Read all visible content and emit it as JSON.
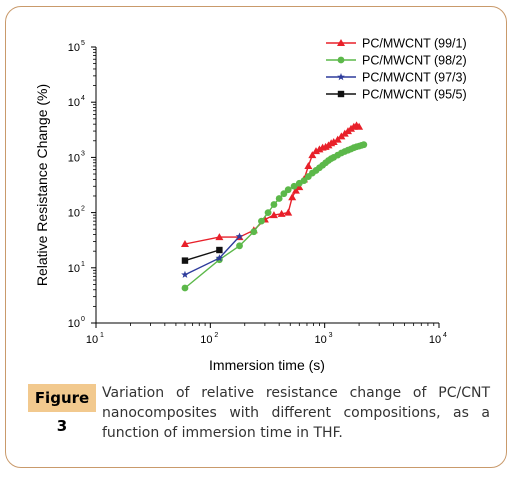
{
  "chart_data": {
    "type": "scatter",
    "title": "",
    "xlabel": "Immersion time (s)",
    "ylabel": "Relative Resistance Change (%)",
    "xscale": "log",
    "yscale": "log",
    "xlim": [
      10,
      10000
    ],
    "ylim": [
      1,
      100000
    ],
    "x_ticks": [
      {
        "value": 10,
        "base": "10",
        "exp": "1"
      },
      {
        "value": 100,
        "base": "10",
        "exp": "2"
      },
      {
        "value": 1000,
        "base": "10",
        "exp": "3"
      },
      {
        "value": 10000,
        "base": "10",
        "exp": "4"
      }
    ],
    "y_ticks": [
      {
        "value": 1,
        "base": "10",
        "exp": "0"
      },
      {
        "value": 10,
        "base": "10",
        "exp": "1"
      },
      {
        "value": 100,
        "base": "10",
        "exp": "2"
      },
      {
        "value": 1000,
        "base": "10",
        "exp": "3"
      },
      {
        "value": 10000,
        "base": "10",
        "exp": "4"
      },
      {
        "value": 100000,
        "base": "10",
        "exp": "5"
      }
    ],
    "legend_position": "top-right",
    "series": [
      {
        "name": "PC/MWCNT (99/1)",
        "color": "#e8202a",
        "marker": "triangle",
        "points": [
          [
            60,
            27
          ],
          [
            120,
            36
          ],
          [
            180,
            36
          ],
          [
            240,
            48
          ],
          [
            300,
            75
          ],
          [
            360,
            90
          ],
          [
            420,
            95
          ],
          [
            480,
            100
          ],
          [
            520,
            190
          ],
          [
            560,
            250
          ],
          [
            600,
            290
          ],
          [
            660,
            400
          ],
          [
            720,
            700
          ],
          [
            780,
            1100
          ],
          [
            840,
            1300
          ],
          [
            900,
            1400
          ],
          [
            960,
            1500
          ],
          [
            1020,
            1550
          ],
          [
            1080,
            1650
          ],
          [
            1140,
            1800
          ],
          [
            1200,
            1900
          ],
          [
            1300,
            2100
          ],
          [
            1400,
            2400
          ],
          [
            1500,
            2700
          ],
          [
            1600,
            3000
          ],
          [
            1700,
            3300
          ],
          [
            1800,
            3600
          ],
          [
            1900,
            3800
          ],
          [
            2000,
            3600
          ]
        ]
      },
      {
        "name": "PC/MWCNT (98/2)",
        "color": "#5cb84a",
        "marker": "circle",
        "points": [
          [
            60,
            4.3
          ],
          [
            120,
            14
          ],
          [
            180,
            25
          ],
          [
            240,
            45
          ],
          [
            280,
            70
          ],
          [
            320,
            100
          ],
          [
            360,
            140
          ],
          [
            400,
            180
          ],
          [
            440,
            220
          ],
          [
            480,
            260
          ],
          [
            540,
            300
          ],
          [
            600,
            340
          ],
          [
            660,
            380
          ],
          [
            720,
            450
          ],
          [
            780,
            520
          ],
          [
            840,
            580
          ],
          [
            900,
            650
          ],
          [
            960,
            720
          ],
          [
            1020,
            800
          ],
          [
            1080,
            880
          ],
          [
            1140,
            950
          ],
          [
            1200,
            1000
          ],
          [
            1300,
            1100
          ],
          [
            1400,
            1200
          ],
          [
            1500,
            1280
          ],
          [
            1600,
            1350
          ],
          [
            1700,
            1420
          ],
          [
            1800,
            1500
          ],
          [
            1900,
            1560
          ],
          [
            2000,
            1600
          ],
          [
            2100,
            1650
          ],
          [
            2200,
            1700
          ]
        ]
      },
      {
        "name": "PC/MWCNT (97/3)",
        "color": "#2e3c9c",
        "marker": "star",
        "points": [
          [
            60,
            7.5
          ],
          [
            120,
            15
          ],
          [
            180,
            37
          ]
        ]
      },
      {
        "name": "PC/MWCNT (95/5)",
        "color": "#111111",
        "marker": "square",
        "points": [
          [
            60,
            13.5
          ],
          [
            120,
            21
          ]
        ]
      }
    ]
  },
  "caption": {
    "label": "Figure 3",
    "text": "Variation of relative resistance change of PC/CNT nanocomposites with different compositions, as a function of immersion time in THF."
  }
}
